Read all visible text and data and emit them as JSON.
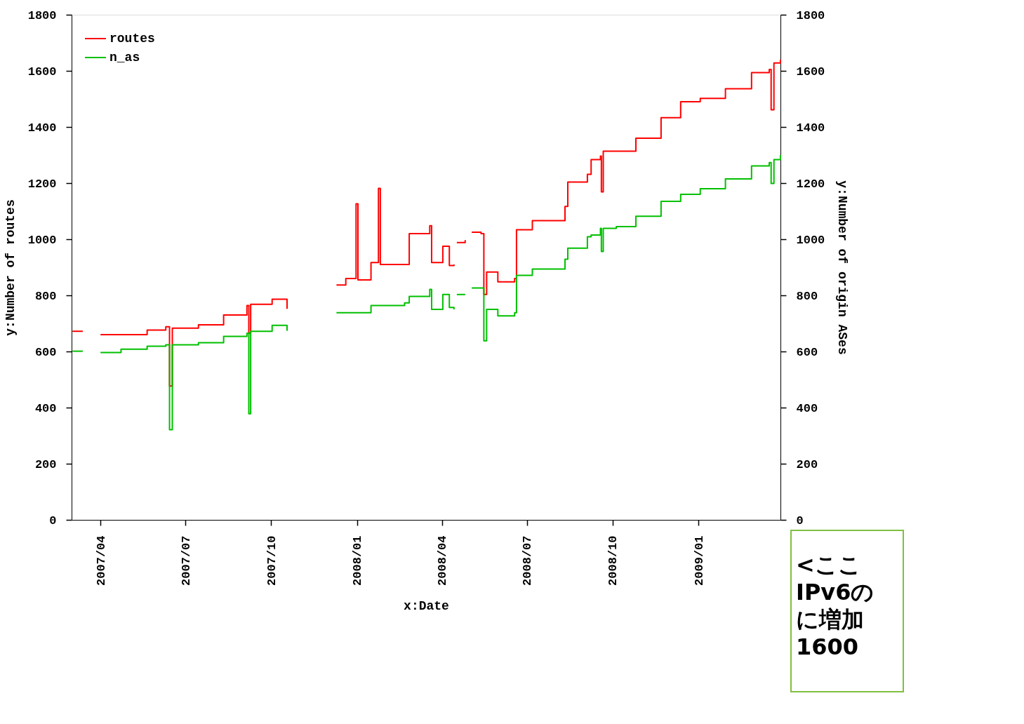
{
  "chart_data": {
    "type": "step",
    "xlabel": "x:Date",
    "ylabel": "y:Number of routes",
    "y2label": "y:Number of origin ASes",
    "x": [
      "2007-03-02",
      "2007-03-13",
      "2007-03-22",
      "2007-04-01",
      "2007-04-23",
      "2007-05-21",
      "2007-06-10",
      "2007-06-14",
      "2007-06-17",
      "2007-07-15",
      "2007-08-11",
      "2007-09-05",
      "2007-09-07",
      "2007-09-09",
      "2007-10-02",
      "2007-10-18",
      "2007-11-16",
      "2007-12-10",
      "2007-12-20",
      "2007-12-31",
      "2008-01-02",
      "2008-01-16",
      "2008-01-24",
      "2008-01-26",
      "2008-02-21",
      "2008-02-26",
      "2008-03-19",
      "2008-03-21",
      "2008-04-02",
      "2008-04-09",
      "2008-04-14",
      "2008-04-16",
      "2008-04-17",
      "2008-04-26",
      "2008-04-29",
      "2008-05-03",
      "2008-05-13",
      "2008-05-16",
      "2008-05-19",
      "2008-05-31",
      "2008-06-18",
      "2008-06-20",
      "2008-07-07",
      "2008-08-11",
      "2008-08-14",
      "2008-09-04",
      "2008-09-08",
      "2008-09-18",
      "2008-09-19",
      "2008-09-21",
      "2008-10-05",
      "2008-10-26",
      "2008-11-22",
      "2008-12-13",
      "2009-01-03",
      "2009-01-30",
      "2009-02-27",
      "2009-03-18",
      "2009-03-20",
      "2009-03-23",
      "2009-03-30"
    ],
    "series": [
      {
        "name": "routes",
        "color": "#ff0000",
        "values": [
          672,
          672,
          null,
          660,
          660,
          676,
          688,
          477,
          683,
          695,
          730,
          764,
          665,
          768,
          786,
          752,
          null,
          837,
          860,
          1126,
          855,
          917,
          1181,
          910,
          910,
          1020,
          1048,
          917,
          975,
          906,
          910,
          null,
          988,
          997,
          null,
          1025,
          1020,
          803,
          883,
          848,
          860,
          1034,
          1066,
          1117,
          1204,
          1231,
          1284,
          1296,
          1169,
          1314,
          1314,
          1360,
          1433,
          1490,
          1502,
          1536,
          1594,
          1605,
          1461,
          1628,
          1640
        ]
      },
      {
        "name": "n_as",
        "color": "#00c000",
        "values": [
          601,
          601,
          null,
          596,
          608,
          619,
          624,
          321,
          624,
          631,
          654,
          665,
          378,
          672,
          693,
          674,
          null,
          738,
          738,
          738,
          738,
          764,
          764,
          764,
          773,
          796,
          821,
          750,
          803,
          757,
          750,
          null,
          803,
          803,
          null,
          826,
          826,
          638,
          750,
          727,
          738,
          871,
          894,
          929,
          968,
          1009,
          1015,
          1039,
          956,
          1039,
          1045,
          1082,
          1135,
          1160,
          1180,
          1215,
          1261,
          1273,
          1199,
          1284,
          1300
        ]
      }
    ],
    "xlim": [
      "2007-03-01",
      "2009-03-30"
    ],
    "xticks": [
      {
        "value": "2007-04",
        "label": "2007/04"
      },
      {
        "value": "2007-07",
        "label": "2007/07"
      },
      {
        "value": "2007-10",
        "label": "2007/10"
      },
      {
        "value": "2008-01",
        "label": "2008/01"
      },
      {
        "value": "2008-04",
        "label": "2008/04"
      },
      {
        "value": "2008-07",
        "label": "2008/07"
      },
      {
        "value": "2008-10",
        "label": "2008/10"
      },
      {
        "value": "2009-01",
        "label": "2009/01"
      }
    ],
    "ylim": [
      0,
      1800
    ],
    "yticks": [
      0,
      200,
      400,
      600,
      800,
      1000,
      1200,
      1400,
      1600,
      1800
    ],
    "y2lim": [
      0,
      1800
    ],
    "y2ticks": [
      0,
      200,
      400,
      600,
      800,
      1000,
      1200,
      1400,
      1600,
      1800
    ],
    "grid": false,
    "legend": "top left",
    "annotations": [
      "<ここ",
      "IPv6の",
      "に増加",
      "1600"
    ]
  }
}
